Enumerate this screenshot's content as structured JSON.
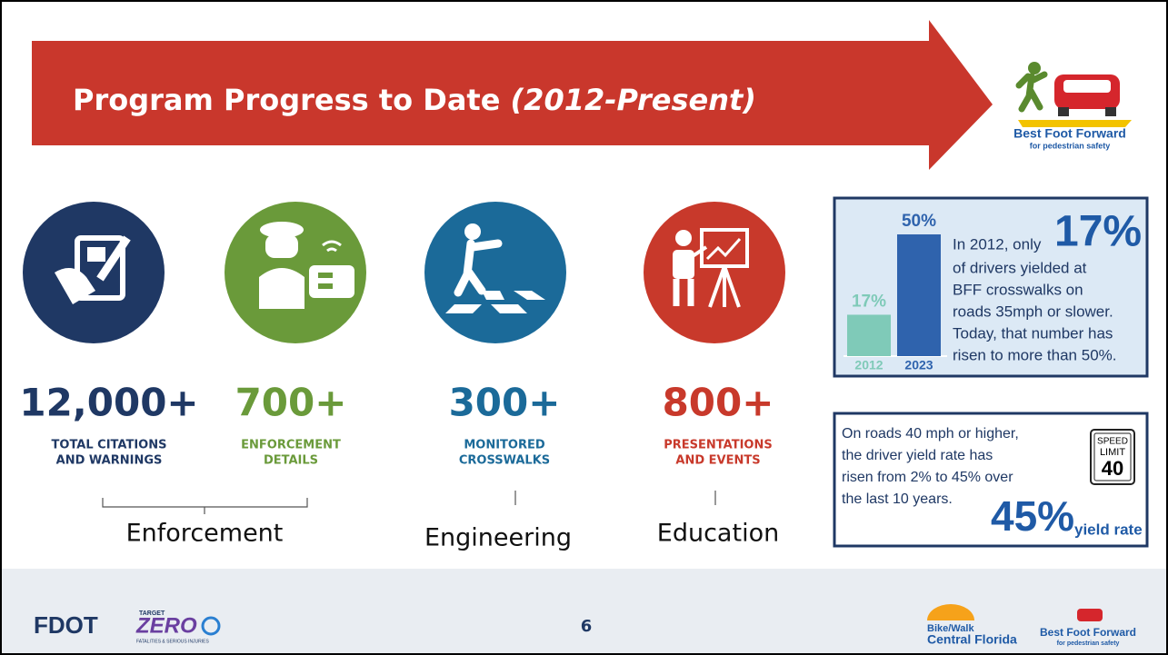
{
  "header": {
    "title": "Program Progress to Date",
    "title_em": "(2012-Present)"
  },
  "logo": {
    "name": "Best Foot Forward",
    "tagline": "for pedestrian safety"
  },
  "stats": [
    {
      "number": "12,000+",
      "label_lines": [
        "TOTAL CITATIONS",
        "AND WARNINGS"
      ]
    },
    {
      "number": "700+",
      "label_lines": [
        "ENFORCEMENT",
        "DETAILS"
      ]
    },
    {
      "number": "300+",
      "label_lines": [
        "MONITORED",
        "CROSSWALKS"
      ]
    },
    {
      "number": "800+",
      "label_lines": [
        "PRESENTATIONS",
        "AND EVENTS"
      ]
    }
  ],
  "groups": [
    "Enforcement",
    "Engineering",
    "Education"
  ],
  "yield_box": {
    "chart": {
      "type": "bar",
      "categories": [
        "2012",
        "2023"
      ],
      "values": [
        17,
        50
      ],
      "value_labels": [
        "17%",
        "50%"
      ],
      "colors": [
        "#7fcab8",
        "#2f63ad"
      ]
    },
    "lead": "In 2012, only",
    "highlight": "17%",
    "text_lines": [
      "of drivers yielded at",
      "BFF crosswalks on",
      "roads 35mph or slower.",
      "Today, that number has",
      "risen to more than 50%."
    ]
  },
  "speed_box": {
    "text_lines": [
      "On roads 40 mph or higher,",
      "the driver yield rate has",
      "risen from 2% to 45% over",
      "the last 10 years."
    ],
    "sign": [
      "SPEED",
      "LIMIT",
      "40"
    ],
    "highlight": "45%",
    "highlight_caption": "yield rate"
  },
  "footer": {
    "page_number": "6",
    "fdot": "FDOT",
    "target": "TARGET",
    "zero": "ZERO",
    "zero_tagline": "FATALITIES & SERIOUS INJURIES",
    "bikewalk": [
      "Bike/Walk",
      "Central Florida"
    ],
    "bff": [
      "Best Foot Forward",
      "for pedestrian safety"
    ]
  }
}
